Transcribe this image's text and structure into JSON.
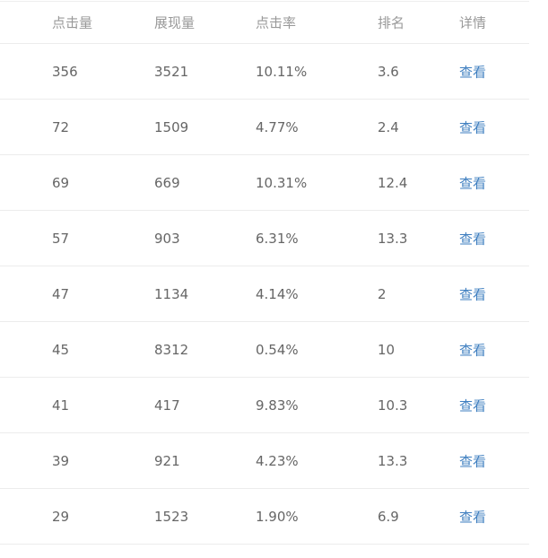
{
  "table": {
    "headers": [
      "点击量",
      "展现量",
      "点击率",
      "排名",
      "详情"
    ],
    "rows": [
      {
        "clicks": "356",
        "impressions": "3521",
        "ctr": "10.11%",
        "rank": "3.6",
        "detail": "查看"
      },
      {
        "clicks": "72",
        "impressions": "1509",
        "ctr": "4.77%",
        "rank": "2.4",
        "detail": "查看"
      },
      {
        "clicks": "69",
        "impressions": "669",
        "ctr": "10.31%",
        "rank": "12.4",
        "detail": "查看"
      },
      {
        "clicks": "57",
        "impressions": "903",
        "ctr": "6.31%",
        "rank": "13.3",
        "detail": "查看"
      },
      {
        "clicks": "47",
        "impressions": "1134",
        "ctr": "4.14%",
        "rank": "2",
        "detail": "查看"
      },
      {
        "clicks": "45",
        "impressions": "8312",
        "ctr": "0.54%",
        "rank": "10",
        "detail": "查看"
      },
      {
        "clicks": "41",
        "impressions": "417",
        "ctr": "9.83%",
        "rank": "10.3",
        "detail": "查看"
      },
      {
        "clicks": "39",
        "impressions": "921",
        "ctr": "4.23%",
        "rank": "13.3",
        "detail": "查看"
      },
      {
        "clicks": "29",
        "impressions": "1523",
        "ctr": "1.90%",
        "rank": "6.9",
        "detail": "查看"
      }
    ]
  },
  "colors": {
    "link": "#3f7fc0",
    "text": "#666666",
    "header": "#999999"
  }
}
